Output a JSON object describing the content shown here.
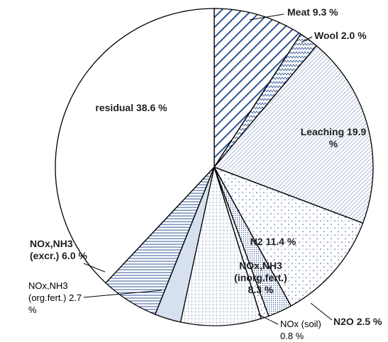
{
  "chart_data": {
    "type": "pie",
    "categories": [
      "Meat",
      "Wool",
      "Leaching",
      "N2",
      "N2O",
      "NOx (soil)",
      "NOx,NH3 (inorg.fert.)",
      "NOx,NH3 (org.fert.)",
      "NOx,NH3 (excr.)",
      "residual"
    ],
    "values": [
      9.3,
      2.0,
      19.9,
      11.4,
      2.5,
      0.8,
      8.3,
      2.7,
      6.0,
      38.6
    ],
    "value_labels": [
      "9.3 %",
      "2.0 %",
      "19.9 %",
      "11.4 %",
      "2.5 %",
      "0.8 %",
      "8.3 %",
      "2.7 %",
      "6.0 %",
      "38.6 %"
    ],
    "color": "#2f5597"
  }
}
